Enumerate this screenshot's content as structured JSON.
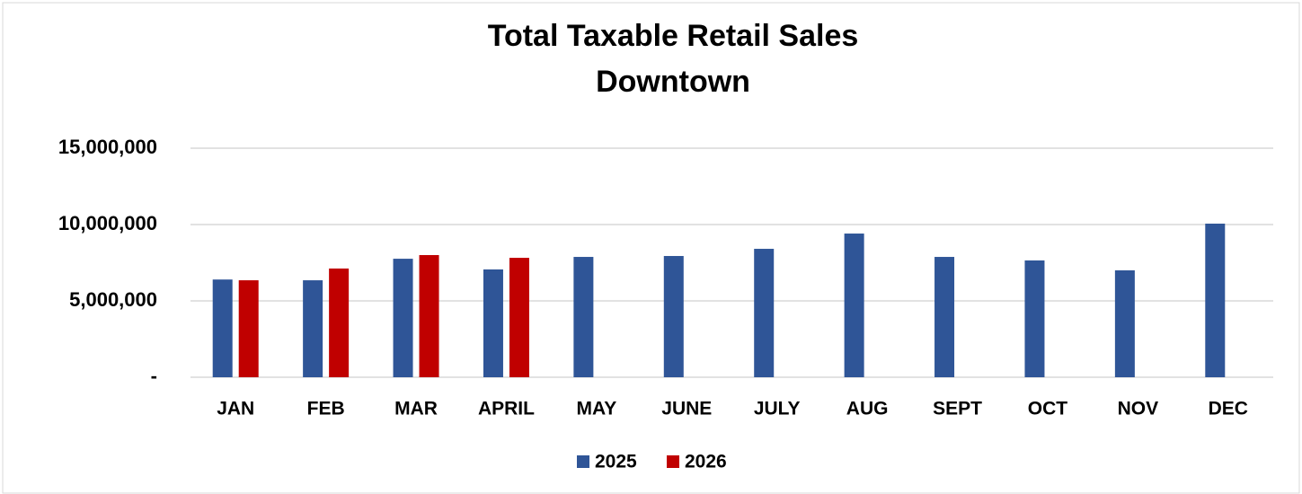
{
  "chart_data": {
    "type": "bar",
    "title": [
      "Total Taxable Retail Sales",
      "Downtown"
    ],
    "categories": [
      "JAN",
      "FEB",
      "MAR",
      "APRIL",
      "MAY",
      "JUNE",
      "JULY",
      "AUG",
      "SEPT",
      "OCT",
      "NOV",
      "DEC"
    ],
    "series": [
      {
        "name": "2025",
        "color": "#2f5597",
        "values": [
          6400000,
          6350000,
          7760000,
          7060000,
          7880000,
          7940000,
          8410000,
          9410000,
          7880000,
          7650000,
          7000000,
          10060000
        ]
      },
      {
        "name": "2026",
        "color": "#c00000",
        "values": [
          6350000,
          7120000,
          8000000,
          7820000,
          null,
          null,
          null,
          null,
          null,
          null,
          null,
          null
        ]
      }
    ],
    "ylim": [
      0,
      15000000
    ],
    "yticks": [
      {
        "value": 0,
        "label": "-"
      },
      {
        "value": 5000000,
        "label": "5,000,000"
      },
      {
        "value": 10000000,
        "label": "10,000,000"
      },
      {
        "value": 15000000,
        "label": "15,000,000"
      }
    ],
    "grid": true,
    "legend": "bottom"
  }
}
